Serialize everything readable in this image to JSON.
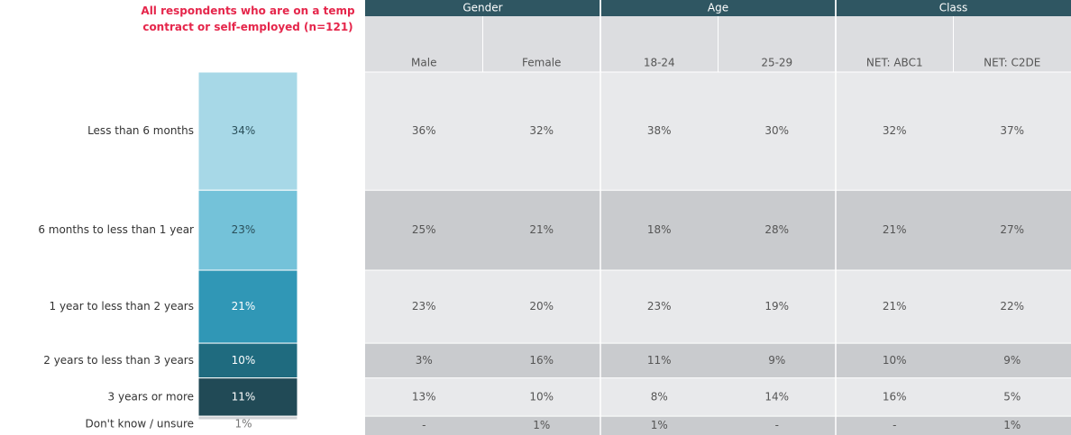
{
  "chart_data": {
    "type": "stacked_bar",
    "title": "All respondents who are on a temp contract or self-employed (n=121)",
    "categories": [
      "Less than 6 months",
      "6 months to less than 1 year",
      "1 year to less than 2 years",
      "2 years to less than 3 years",
      "3 years or more",
      "Don't know / unsure"
    ],
    "values": [
      34,
      23,
      21,
      10,
      11,
      1
    ],
    "value_labels": [
      "34%",
      "23%",
      "21%",
      "10%",
      "11%",
      "1%"
    ],
    "colors": [
      "#a7d8e7",
      "#74c2d9",
      "#3097b6",
      "#1f6b7f",
      "#214a56",
      "#cfd2d5"
    ]
  },
  "table": {
    "groups": [
      {
        "label": "Gender",
        "span": 2
      },
      {
        "label": "Age",
        "span": 2
      },
      {
        "label": "Class",
        "span": 2
      }
    ],
    "columns": [
      "Male",
      "Female",
      "18-24",
      "25-29",
      "NET: ABC1",
      "NET: C2DE"
    ],
    "rows": [
      [
        "36%",
        "32%",
        "38%",
        "30%",
        "32%",
        "37%"
      ],
      [
        "25%",
        "21%",
        "18%",
        "28%",
        "21%",
        "27%"
      ],
      [
        "23%",
        "20%",
        "23%",
        "19%",
        "21%",
        "22%"
      ],
      [
        "3%",
        "16%",
        "11%",
        "9%",
        "10%",
        "9%"
      ],
      [
        "13%",
        "10%",
        "8%",
        "14%",
        "16%",
        "5%"
      ],
      [
        "-",
        "1%",
        "1%",
        "-",
        "-",
        "1%"
      ]
    ]
  }
}
